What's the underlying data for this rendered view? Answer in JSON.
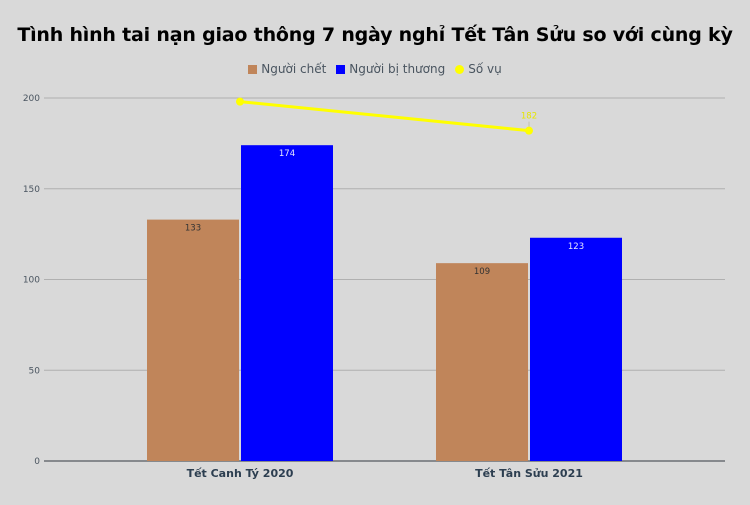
{
  "chart_data": {
    "type": "bar",
    "title": "Tình hình tai nạn giao thông 7 ngày nghỉ Tết Tân Sửu so với cùng kỳ",
    "categories": [
      "Tết Canh Tý 2020",
      "Tết Tân Sửu 2021"
    ],
    "series": [
      {
        "name": "Người chết",
        "type": "bar",
        "color": "#c0855a",
        "values": [
          133,
          109
        ],
        "labels": [
          "133",
          "109"
        ],
        "label_color": "#333333"
      },
      {
        "name": "Người bị thương",
        "type": "bar",
        "color": "#0000ff",
        "values": [
          174,
          123
        ],
        "labels": [
          "174",
          "123"
        ],
        "label_color": "#e6e6ff"
      },
      {
        "name": "Số vụ",
        "type": "line",
        "color": "#ffff00",
        "values": [
          198,
          182
        ],
        "labels": [
          "",
          "182"
        ],
        "label_color": "#e6e600"
      }
    ],
    "xlabel": "",
    "ylabel": "",
    "ylim": [
      0,
      200
    ],
    "yticks": [
      0,
      50,
      100,
      150,
      200
    ],
    "grid": true,
    "legend_position": "top"
  },
  "legend": [
    {
      "label": "Người chết",
      "color": "#c0855a",
      "shape": "square"
    },
    {
      "label": "Người bị thương",
      "color": "#0000ff",
      "shape": "square"
    },
    {
      "label": "Số vụ",
      "color": "#ffff00",
      "shape": "circle"
    }
  ]
}
